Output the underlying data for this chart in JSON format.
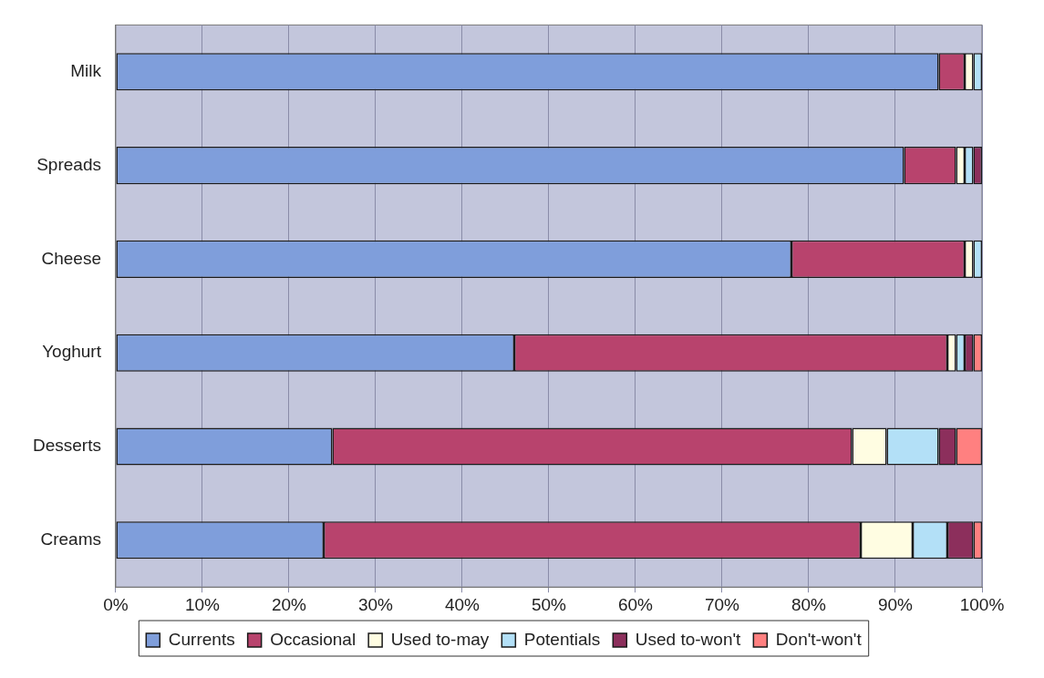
{
  "chart_data": {
    "type": "bar",
    "orientation": "horizontal",
    "stacked": true,
    "categories": [
      "Milk",
      "Spreads",
      "Cheese",
      "Yoghurt",
      "Desserts",
      "Creams"
    ],
    "series": [
      {
        "name": "Currents",
        "color": "#7f9edb",
        "values": [
          95,
          91,
          78,
          46,
          25,
          24
        ]
      },
      {
        "name": "Occasional",
        "color": "#b8436d",
        "values": [
          3,
          6,
          20,
          50,
          60,
          62
        ]
      },
      {
        "name": "Used to-may",
        "color": "#fffde2",
        "values": [
          1,
          1,
          1,
          1,
          4,
          6
        ]
      },
      {
        "name": "Potentials",
        "color": "#b3e0f7",
        "values": [
          1,
          1,
          1,
          1,
          6,
          4
        ]
      },
      {
        "name": "Used to-won't",
        "color": "#8c2f5c",
        "values": [
          0,
          1,
          0,
          1,
          2,
          3
        ]
      },
      {
        "name": "Don't-won't",
        "color": "#ff8080",
        "values": [
          0,
          0,
          0,
          1,
          3,
          1
        ]
      }
    ],
    "xlim": [
      0,
      100
    ],
    "xticks": [
      {
        "value": 0,
        "label": "0%"
      },
      {
        "value": 10,
        "label": "10%"
      },
      {
        "value": 20,
        "label": "20%"
      },
      {
        "value": 30,
        "label": "30%"
      },
      {
        "value": 40,
        "label": "40%"
      },
      {
        "value": 50,
        "label": "50%"
      },
      {
        "value": 60,
        "label": "60%"
      },
      {
        "value": 70,
        "label": "70%"
      },
      {
        "value": 80,
        "label": "80%"
      },
      {
        "value": 90,
        "label": "90%"
      },
      {
        "value": 100,
        "label": "100%"
      }
    ],
    "grid": "x",
    "legend": "bottom"
  }
}
